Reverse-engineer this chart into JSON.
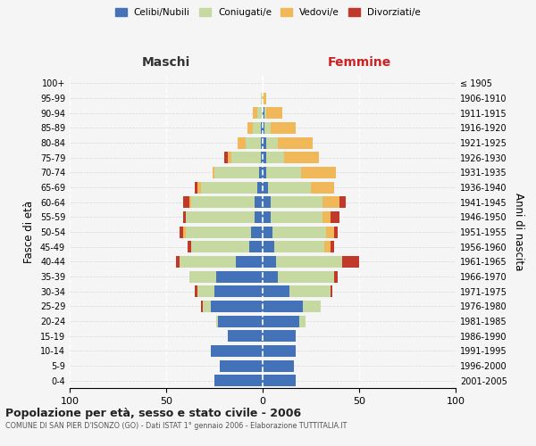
{
  "age_groups": [
    "0-4",
    "5-9",
    "10-14",
    "15-19",
    "20-24",
    "25-29",
    "30-34",
    "35-39",
    "40-44",
    "45-49",
    "50-54",
    "55-59",
    "60-64",
    "65-69",
    "70-74",
    "75-79",
    "80-84",
    "85-89",
    "90-94",
    "95-99",
    "100+"
  ],
  "birth_years": [
    "2001-2005",
    "1996-2000",
    "1991-1995",
    "1986-1990",
    "1981-1985",
    "1976-1980",
    "1971-1975",
    "1966-1970",
    "1961-1965",
    "1956-1960",
    "1951-1955",
    "1946-1950",
    "1941-1945",
    "1936-1940",
    "1931-1935",
    "1926-1930",
    "1921-1925",
    "1916-1920",
    "1911-1915",
    "1906-1910",
    "≤ 1905"
  ],
  "male": {
    "celibi": [
      25,
      22,
      27,
      18,
      23,
      27,
      25,
      24,
      14,
      7,
      6,
      4,
      4,
      3,
      2,
      1,
      1,
      1,
      0,
      0,
      0
    ],
    "coniugati": [
      0,
      0,
      0,
      0,
      1,
      4,
      9,
      14,
      29,
      30,
      34,
      36,
      33,
      29,
      23,
      15,
      8,
      4,
      3,
      1,
      0
    ],
    "vedovi": [
      0,
      0,
      0,
      0,
      0,
      0,
      0,
      0,
      0,
      0,
      1,
      0,
      1,
      2,
      1,
      2,
      4,
      3,
      2,
      0,
      0
    ],
    "divorziati": [
      0,
      0,
      0,
      0,
      0,
      1,
      1,
      0,
      2,
      2,
      2,
      1,
      3,
      1,
      0,
      2,
      0,
      0,
      0,
      0,
      0
    ]
  },
  "female": {
    "nubili": [
      17,
      16,
      17,
      17,
      19,
      21,
      14,
      8,
      7,
      6,
      5,
      4,
      4,
      3,
      2,
      2,
      2,
      1,
      1,
      0,
      0
    ],
    "coniugate": [
      0,
      0,
      0,
      0,
      3,
      9,
      21,
      29,
      34,
      26,
      28,
      27,
      27,
      22,
      18,
      9,
      6,
      3,
      1,
      0,
      0
    ],
    "vedove": [
      0,
      0,
      0,
      0,
      0,
      0,
      0,
      0,
      0,
      3,
      4,
      4,
      9,
      12,
      18,
      18,
      18,
      13,
      8,
      2,
      0
    ],
    "divorziate": [
      0,
      0,
      0,
      0,
      0,
      0,
      1,
      2,
      9,
      2,
      2,
      5,
      3,
      0,
      0,
      0,
      0,
      0,
      0,
      0,
      0
    ]
  },
  "colors": {
    "celibi": "#4472b8",
    "coniugati": "#c5d9a0",
    "vedovi": "#f0b858",
    "divorziati": "#c0392b"
  },
  "xlim": 100,
  "title": "Popolazione per età, sesso e stato civile - 2006",
  "subtitle": "COMUNE DI SAN PIER D'ISONZO (GO) - Dati ISTAT 1° gennaio 2006 - Elaborazione TUTTITALIA.IT",
  "ylabel_left": "Fasce di età",
  "ylabel_right": "Anni di nascita",
  "label_maschi": "Maschi",
  "label_femmine": "Femmine",
  "legend_labels": [
    "Celibi/Nubili",
    "Coniugati/e",
    "Vedovi/e",
    "Divorziati/e"
  ],
  "bg_color": "#f5f5f5",
  "bar_height": 0.78
}
